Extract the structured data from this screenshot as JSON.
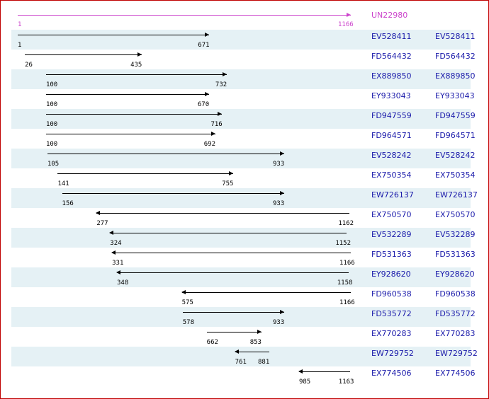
{
  "reference": {
    "accession": "UN22980",
    "start": 1,
    "end": 1166,
    "color": "#cc44cc"
  },
  "colors": {
    "arrow": "#000000",
    "link": "#1a1aaa",
    "row_alt": "#e5f1f5",
    "border": "#c00000"
  },
  "alignments": [
    {
      "start": 1,
      "end": 671,
      "direction": "forward",
      "accession": "EV528411",
      "accession2": "EV528411"
    },
    {
      "start": 26,
      "end": 435,
      "direction": "forward",
      "accession": "FD564432",
      "accession2": "FD564432"
    },
    {
      "start": 100,
      "end": 732,
      "direction": "forward",
      "accession": "EX889850",
      "accession2": "EX889850"
    },
    {
      "start": 100,
      "end": 670,
      "direction": "forward",
      "accession": "EY933043",
      "accession2": "EY933043"
    },
    {
      "start": 100,
      "end": 716,
      "direction": "forward",
      "accession": "FD947559",
      "accession2": "FD947559"
    },
    {
      "start": 100,
      "end": 692,
      "direction": "forward",
      "accession": "FD964571",
      "accession2": "FD964571"
    },
    {
      "start": 105,
      "end": 933,
      "direction": "forward",
      "accession": "EV528242",
      "accession2": "EV528242"
    },
    {
      "start": 141,
      "end": 755,
      "direction": "forward",
      "accession": "EX750354",
      "accession2": "EX750354"
    },
    {
      "start": 156,
      "end": 933,
      "direction": "forward",
      "accession": "EW726137",
      "accession2": "EW726137"
    },
    {
      "start": 277,
      "end": 1162,
      "direction": "reverse",
      "accession": "EX750570",
      "accession2": "EX750570"
    },
    {
      "start": 324,
      "end": 1152,
      "direction": "reverse",
      "accession": "EV532289",
      "accession2": "EV532289"
    },
    {
      "start": 331,
      "end": 1166,
      "direction": "reverse",
      "accession": "FD531363",
      "accession2": "FD531363"
    },
    {
      "start": 348,
      "end": 1158,
      "direction": "reverse",
      "accession": "EY928620",
      "accession2": "EY928620"
    },
    {
      "start": 575,
      "end": 1166,
      "direction": "reverse",
      "accession": "FD960538",
      "accession2": "FD960538"
    },
    {
      "start": 578,
      "end": 933,
      "direction": "forward",
      "accession": "FD535772",
      "accession2": "FD535772"
    },
    {
      "start": 662,
      "end": 853,
      "direction": "forward",
      "accession": "EX770283",
      "accession2": "EX770283"
    },
    {
      "start": 761,
      "end": 881,
      "direction": "reverse",
      "accession": "EW729752",
      "accession2": "EW729752"
    },
    {
      "start": 985,
      "end": 1163,
      "direction": "reverse",
      "accession": "EX774506",
      "accession2": "EX774506"
    }
  ]
}
